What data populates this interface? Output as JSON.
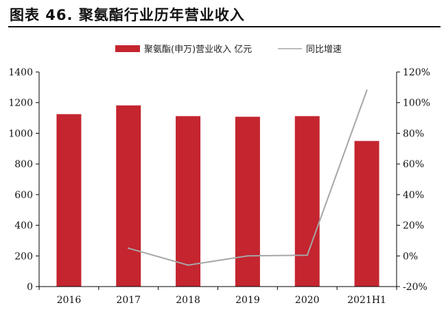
{
  "title": "图表 46. 聚氨酯行业历年营业收入",
  "colors": {
    "bar": "#C4252F",
    "line": "#A6A6A6",
    "axis": "#000000",
    "text": "#111111"
  },
  "chart_data": {
    "type": "bar",
    "categories": [
      "2016",
      "2017",
      "2018",
      "2019",
      "2020",
      "2021H1"
    ],
    "series": [
      {
        "name": "聚氨酯(申万)营业收入 亿元",
        "type": "bar",
        "axis": "left",
        "values": [
          1125,
          1182,
          1112,
          1108,
          1112,
          950
        ]
      },
      {
        "name": "同比增速",
        "type": "line",
        "axis": "right",
        "values": [
          null,
          0.05,
          -0.06,
          0.0,
          0.005,
          1.08
        ]
      }
    ],
    "y_left": {
      "ylim": [
        0,
        1400
      ],
      "ticks": [
        "0",
        "200",
        "400",
        "600",
        "800",
        "1000",
        "1200",
        "1400"
      ]
    },
    "y_right": {
      "ylim": [
        -0.2,
        1.2
      ],
      "ticks": [
        "-20%",
        "0%",
        "20%",
        "40%",
        "60%",
        "80%",
        "100%",
        "120%"
      ]
    },
    "legend": "top",
    "grid": false
  }
}
